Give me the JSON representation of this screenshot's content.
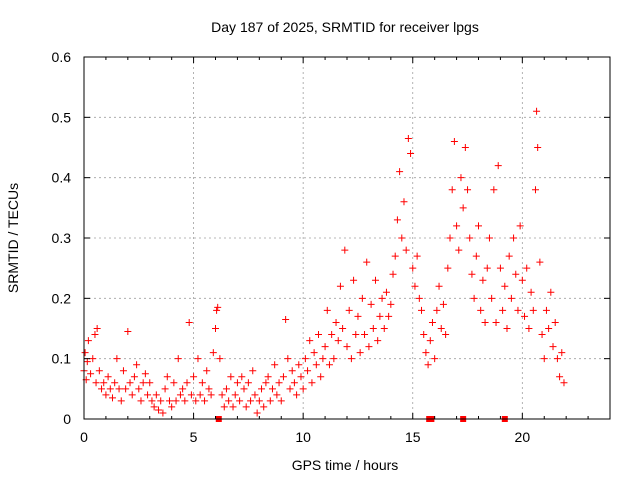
{
  "chart_data": {
    "type": "scatter",
    "title": "Day 187 of 2025, SRMTID for receiver lpgs",
    "xlabel": "GPS time / hours",
    "ylabel": "SRMTID / TECUs",
    "xlim": [
      0,
      24
    ],
    "ylim": [
      0,
      0.6
    ],
    "xticks": [
      0,
      5,
      10,
      15,
      20
    ],
    "xtick_labels": [
      "0",
      "5",
      "10",
      "15",
      "20"
    ],
    "yticks": [
      0,
      0.1,
      0.2,
      0.3,
      0.4,
      0.5,
      0.6
    ],
    "ytick_labels": [
      "0",
      "0.1",
      "0.2",
      "0.3",
      "0.4",
      "0.5",
      "0.6"
    ],
    "grid": true,
    "marker": "+",
    "color": "#ff0000",
    "series": [
      {
        "name": "SRMTID",
        "points": [
          [
            0.0,
            0.08
          ],
          [
            0.05,
            0.11
          ],
          [
            0.1,
            0.065
          ],
          [
            0.15,
            0.095
          ],
          [
            0.2,
            0.13
          ],
          [
            0.3,
            0.075
          ],
          [
            0.4,
            0.1
          ],
          [
            0.5,
            0.14
          ],
          [
            0.55,
            0.06
          ],
          [
            0.6,
            0.15
          ],
          [
            0.7,
            0.08
          ],
          [
            0.8,
            0.05
          ],
          [
            0.9,
            0.06
          ],
          [
            1.0,
            0.04
          ],
          [
            1.1,
            0.07
          ],
          [
            1.2,
            0.05
          ],
          [
            1.3,
            0.035
          ],
          [
            1.4,
            0.06
          ],
          [
            1.5,
            0.1
          ],
          [
            1.6,
            0.05
          ],
          [
            1.7,
            0.03
          ],
          [
            1.8,
            0.08
          ],
          [
            1.9,
            0.05
          ],
          [
            2.0,
            0.145
          ],
          [
            2.1,
            0.06
          ],
          [
            2.2,
            0.04
          ],
          [
            2.3,
            0.07
          ],
          [
            2.4,
            0.09
          ],
          [
            2.5,
            0.05
          ],
          [
            2.6,
            0.03
          ],
          [
            2.7,
            0.06
          ],
          [
            2.8,
            0.075
          ],
          [
            2.9,
            0.04
          ],
          [
            3.0,
            0.06
          ],
          [
            3.1,
            0.03
          ],
          [
            3.2,
            0.02
          ],
          [
            3.3,
            0.04
          ],
          [
            3.4,
            0.015
          ],
          [
            3.5,
            0.03
          ],
          [
            3.6,
            0.01
          ],
          [
            3.7,
            0.05
          ],
          [
            3.8,
            0.07
          ],
          [
            3.9,
            0.03
          ],
          [
            4.0,
            0.02
          ],
          [
            4.1,
            0.06
          ],
          [
            4.2,
            0.03
          ],
          [
            4.3,
            0.1
          ],
          [
            4.4,
            0.04
          ],
          [
            4.5,
            0.05
          ],
          [
            4.6,
            0.03
          ],
          [
            4.7,
            0.06
          ],
          [
            4.8,
            0.16
          ],
          [
            4.9,
            0.04
          ],
          [
            5.0,
            0.07
          ],
          [
            5.1,
            0.03
          ],
          [
            5.2,
            0.1
          ],
          [
            5.3,
            0.04
          ],
          [
            5.4,
            0.06
          ],
          [
            5.5,
            0.03
          ],
          [
            5.6,
            0.08
          ],
          [
            5.7,
            0.05
          ],
          [
            5.8,
            0.04
          ],
          [
            5.9,
            0.11
          ],
          [
            6.0,
            0.15
          ],
          [
            6.05,
            0.18
          ],
          [
            6.1,
            0.185
          ],
          [
            6.2,
            0.1
          ],
          [
            6.3,
            0.04
          ],
          [
            6.4,
            0.02
          ],
          [
            6.5,
            0.05
          ],
          [
            6.6,
            0.03
          ],
          [
            6.7,
            0.07
          ],
          [
            6.8,
            0.02
          ],
          [
            6.9,
            0.04
          ],
          [
            7.0,
            0.06
          ],
          [
            7.1,
            0.03
          ],
          [
            7.2,
            0.07
          ],
          [
            7.3,
            0.05
          ],
          [
            7.4,
            0.02
          ],
          [
            7.5,
            0.06
          ],
          [
            7.6,
            0.03
          ],
          [
            7.7,
            0.08
          ],
          [
            7.8,
            0.04
          ],
          [
            7.9,
            0.01
          ],
          [
            8.0,
            0.03
          ],
          [
            8.1,
            0.05
          ],
          [
            8.2,
            0.02
          ],
          [
            8.3,
            0.06
          ],
          [
            8.4,
            0.07
          ],
          [
            8.5,
            0.03
          ],
          [
            8.6,
            0.05
          ],
          [
            8.7,
            0.09
          ],
          [
            8.8,
            0.04
          ],
          [
            8.9,
            0.06
          ],
          [
            9.0,
            0.03
          ],
          [
            9.1,
            0.07
          ],
          [
            9.2,
            0.165
          ],
          [
            9.3,
            0.1
          ],
          [
            9.4,
            0.05
          ],
          [
            9.5,
            0.08
          ],
          [
            9.6,
            0.06
          ],
          [
            9.7,
            0.04
          ],
          [
            9.8,
            0.09
          ],
          [
            9.9,
            0.07
          ],
          [
            10.0,
            0.05
          ],
          [
            10.1,
            0.1
          ],
          [
            10.2,
            0.08
          ],
          [
            10.3,
            0.13
          ],
          [
            10.4,
            0.06
          ],
          [
            10.5,
            0.11
          ],
          [
            10.6,
            0.09
          ],
          [
            10.7,
            0.14
          ],
          [
            10.8,
            0.07
          ],
          [
            10.9,
            0.1
          ],
          [
            11.0,
            0.12
          ],
          [
            11.1,
            0.18
          ],
          [
            11.2,
            0.09
          ],
          [
            11.3,
            0.14
          ],
          [
            11.4,
            0.1
          ],
          [
            11.5,
            0.16
          ],
          [
            11.6,
            0.13
          ],
          [
            11.7,
            0.22
          ],
          [
            11.8,
            0.15
          ],
          [
            11.9,
            0.28
          ],
          [
            12.0,
            0.12
          ],
          [
            12.1,
            0.18
          ],
          [
            12.2,
            0.1
          ],
          [
            12.3,
            0.23
          ],
          [
            12.4,
            0.14
          ],
          [
            12.5,
            0.17
          ],
          [
            12.6,
            0.11
          ],
          [
            12.7,
            0.2
          ],
          [
            12.8,
            0.14
          ],
          [
            12.9,
            0.26
          ],
          [
            13.0,
            0.12
          ],
          [
            13.1,
            0.19
          ],
          [
            13.2,
            0.15
          ],
          [
            13.3,
            0.23
          ],
          [
            13.4,
            0.13
          ],
          [
            13.5,
            0.17
          ],
          [
            13.6,
            0.2
          ],
          [
            13.7,
            0.15
          ],
          [
            13.8,
            0.21
          ],
          [
            13.9,
            0.17
          ],
          [
            14.0,
            0.19
          ],
          [
            14.1,
            0.24
          ],
          [
            14.2,
            0.27
          ],
          [
            14.3,
            0.33
          ],
          [
            14.4,
            0.41
          ],
          [
            14.5,
            0.3
          ],
          [
            14.6,
            0.36
          ],
          [
            14.7,
            0.28
          ],
          [
            14.8,
            0.465
          ],
          [
            14.9,
            0.44
          ],
          [
            15.0,
            0.25
          ],
          [
            15.1,
            0.22
          ],
          [
            15.2,
            0.27
          ],
          [
            15.3,
            0.2
          ],
          [
            15.4,
            0.18
          ],
          [
            15.5,
            0.14
          ],
          [
            15.6,
            0.11
          ],
          [
            15.7,
            0.09
          ],
          [
            15.8,
            0.13
          ],
          [
            15.9,
            0.16
          ],
          [
            16.0,
            0.1
          ],
          [
            16.1,
            0.18
          ],
          [
            16.2,
            0.22
          ],
          [
            16.3,
            0.15
          ],
          [
            16.4,
            0.19
          ],
          [
            16.5,
            0.14
          ],
          [
            16.6,
            0.25
          ],
          [
            16.7,
            0.3
          ],
          [
            16.8,
            0.38
          ],
          [
            16.9,
            0.46
          ],
          [
            17.0,
            0.32
          ],
          [
            17.1,
            0.28
          ],
          [
            17.2,
            0.4
          ],
          [
            17.3,
            0.35
          ],
          [
            17.4,
            0.45
          ],
          [
            17.5,
            0.38
          ],
          [
            17.6,
            0.3
          ],
          [
            17.7,
            0.24
          ],
          [
            17.8,
            0.2
          ],
          [
            17.9,
            0.27
          ],
          [
            18.0,
            0.32
          ],
          [
            18.1,
            0.18
          ],
          [
            18.2,
            0.23
          ],
          [
            18.3,
            0.16
          ],
          [
            18.4,
            0.25
          ],
          [
            18.5,
            0.3
          ],
          [
            18.6,
            0.2
          ],
          [
            18.7,
            0.38
          ],
          [
            18.8,
            0.16
          ],
          [
            18.9,
            0.42
          ],
          [
            19.0,
            0.25
          ],
          [
            19.1,
            0.18
          ],
          [
            19.2,
            0.22
          ],
          [
            19.3,
            0.15
          ],
          [
            19.4,
            0.27
          ],
          [
            19.5,
            0.2
          ],
          [
            19.6,
            0.3
          ],
          [
            19.7,
            0.24
          ],
          [
            19.8,
            0.18
          ],
          [
            19.9,
            0.32
          ],
          [
            20.0,
            0.23
          ],
          [
            20.1,
            0.17
          ],
          [
            20.2,
            0.25
          ],
          [
            20.3,
            0.15
          ],
          [
            20.4,
            0.21
          ],
          [
            20.5,
            0.18
          ],
          [
            20.6,
            0.38
          ],
          [
            20.65,
            0.51
          ],
          [
            20.7,
            0.45
          ],
          [
            20.8,
            0.26
          ],
          [
            20.9,
            0.14
          ],
          [
            21.0,
            0.1
          ],
          [
            21.1,
            0.18
          ],
          [
            21.2,
            0.15
          ],
          [
            21.3,
            0.21
          ],
          [
            21.4,
            0.12
          ],
          [
            21.5,
            0.16
          ],
          [
            21.6,
            0.1
          ],
          [
            21.7,
            0.07
          ],
          [
            21.8,
            0.11
          ],
          [
            21.9,
            0.06
          ]
        ]
      }
    ],
    "gap_markers": [
      {
        "x": 6.15,
        "y": 0
      },
      {
        "x": 15.75,
        "y": 0
      },
      {
        "x": 15.85,
        "y": 0
      },
      {
        "x": 17.3,
        "y": 0
      },
      {
        "x": 19.2,
        "y": 0
      }
    ]
  }
}
